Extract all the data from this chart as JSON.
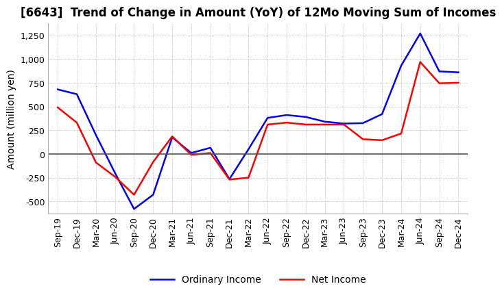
{
  "title": "[6643]  Trend of Change in Amount (YoY) of 12Mo Moving Sum of Incomes",
  "ylabel": "Amount (million yen)",
  "ylim": [
    -625,
    1375
  ],
  "yticks": [
    -500,
    -250,
    0,
    250,
    500,
    750,
    1000,
    1250
  ],
  "x_labels": [
    "Sep-19",
    "Dec-19",
    "Mar-20",
    "Jun-20",
    "Sep-20",
    "Dec-20",
    "Mar-21",
    "Jun-21",
    "Sep-21",
    "Dec-21",
    "Mar-22",
    "Jun-22",
    "Sep-22",
    "Dec-22",
    "Mar-23",
    "Jun-23",
    "Sep-23",
    "Dec-23",
    "Mar-24",
    "Jun-24",
    "Sep-24",
    "Dec-24"
  ],
  "ordinary_income": [
    680,
    630,
    200,
    -200,
    -580,
    -430,
    175,
    10,
    65,
    -265,
    50,
    380,
    410,
    390,
    340,
    320,
    325,
    420,
    930,
    1270,
    870,
    860
  ],
  "net_income": [
    490,
    330,
    -90,
    -240,
    -430,
    -85,
    185,
    -10,
    10,
    -270,
    -250,
    310,
    330,
    310,
    310,
    310,
    155,
    145,
    215,
    970,
    745,
    750
  ],
  "ordinary_color": "#0000ff",
  "net_color": "#ff0000",
  "background_color": "#ffffff",
  "grid_color": "#aaaaaa",
  "title_fontsize": 12,
  "axis_fontsize": 10,
  "tick_fontsize": 9,
  "legend_labels": [
    "Ordinary Income",
    "Net Income"
  ]
}
